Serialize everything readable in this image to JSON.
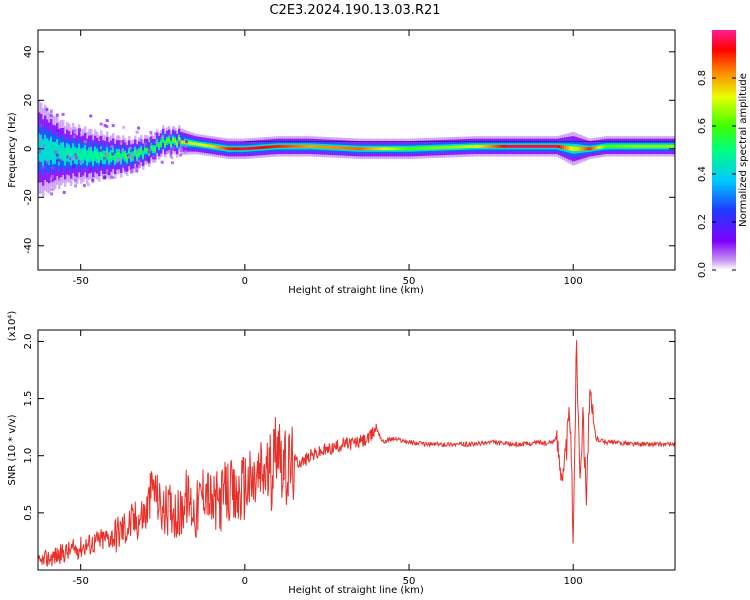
{
  "title": "C2E3.2024.190.13.03.R21",
  "chart_data": [
    {
      "type": "heatmap",
      "xlabel": "Height of straight line (km)",
      "ylabel": "Frequency (Hz)",
      "xlim": [
        -63,
        131
      ],
      "ylim": [
        -50,
        49
      ],
      "xticks": [
        "-50",
        "0",
        "50",
        "100"
      ],
      "yticks": [
        "-40",
        "-20",
        "0",
        "20",
        "40"
      ],
      "colorbar": {
        "label": "Normalized spectral amplitude",
        "range": [
          0,
          1
        ],
        "ticks": [
          "0.0",
          "0.2",
          "0.4",
          "0.6",
          "0.8"
        ]
      },
      "ridge": {
        "x": [
          -63,
          -55,
          -45,
          -35,
          -28,
          -25,
          -20,
          -15,
          -10,
          -5,
          0,
          10,
          20,
          35,
          50,
          70,
          80,
          95,
          100,
          105,
          110,
          120,
          131
        ],
        "center_hz": [
          0,
          -2,
          -3,
          -3,
          0,
          3,
          3,
          2,
          1,
          0,
          0,
          1,
          1,
          0,
          0,
          1,
          1,
          1,
          0,
          0,
          1,
          1,
          1
        ],
        "width_hz": [
          14,
          9,
          7,
          5,
          4,
          4,
          4,
          3,
          3,
          3,
          3,
          3,
          3,
          3,
          3,
          3,
          3,
          3,
          5,
          3,
          3,
          3,
          3
        ],
        "peak_amplitude": [
          0.4,
          0.45,
          0.5,
          0.55,
          0.55,
          0.6,
          0.65,
          0.7,
          0.75,
          0.9,
          0.95,
          0.9,
          0.8,
          0.85,
          0.6,
          0.7,
          0.95,
          0.95,
          0.7,
          0.9,
          0.6,
          0.65,
          0.65
        ]
      }
    },
    {
      "type": "line",
      "series": [
        {
          "color": "#e8302a",
          "x": [
            -63,
            -60,
            -55,
            -50,
            -45,
            -40,
            -35,
            -30,
            -28,
            -25,
            -22,
            -20,
            -18,
            -15,
            -12,
            -10,
            -8,
            -5,
            -3,
            0,
            3,
            5,
            8,
            10,
            12,
            15,
            18,
            20,
            25,
            30,
            35,
            38,
            40,
            42,
            45,
            50,
            55,
            60,
            65,
            70,
            75,
            80,
            85,
            90,
            92,
            95,
            97,
            99,
            100,
            101,
            102,
            103,
            104,
            105,
            107,
            110,
            115,
            120,
            125,
            131
          ],
          "y": [
            0.05,
            0.1,
            0.15,
            0.2,
            0.25,
            0.3,
            0.4,
            0.5,
            0.75,
            0.5,
            0.55,
            0.45,
            0.65,
            0.5,
            0.75,
            0.55,
            0.6,
            0.7,
            0.6,
            0.75,
            0.75,
            0.85,
            0.85,
            1.2,
            0.85,
            0.95,
            0.95,
            1.0,
            1.05,
            1.1,
            1.12,
            1.15,
            1.25,
            1.12,
            1.15,
            1.12,
            1.1,
            1.1,
            1.1,
            1.1,
            1.12,
            1.1,
            1.1,
            1.12,
            1.1,
            1.15,
            0.8,
            1.4,
            0.3,
            2.0,
            0.9,
            1.3,
            0.7,
            1.5,
            1.15,
            1.12,
            1.11,
            1.1,
            1.1,
            1.1
          ]
        }
      ],
      "xlabel": "Height of straight line (km)",
      "ylabel": "SNR (10 * v/v)",
      "multiplier": "(x10⁴)",
      "xlim": [
        -63,
        131
      ],
      "ylim": [
        0,
        2.1
      ],
      "xticks": [
        "-50",
        "0",
        "50",
        "100"
      ],
      "yticks": [
        "0.5",
        "1.0",
        "1.5",
        "2.0"
      ]
    }
  ]
}
